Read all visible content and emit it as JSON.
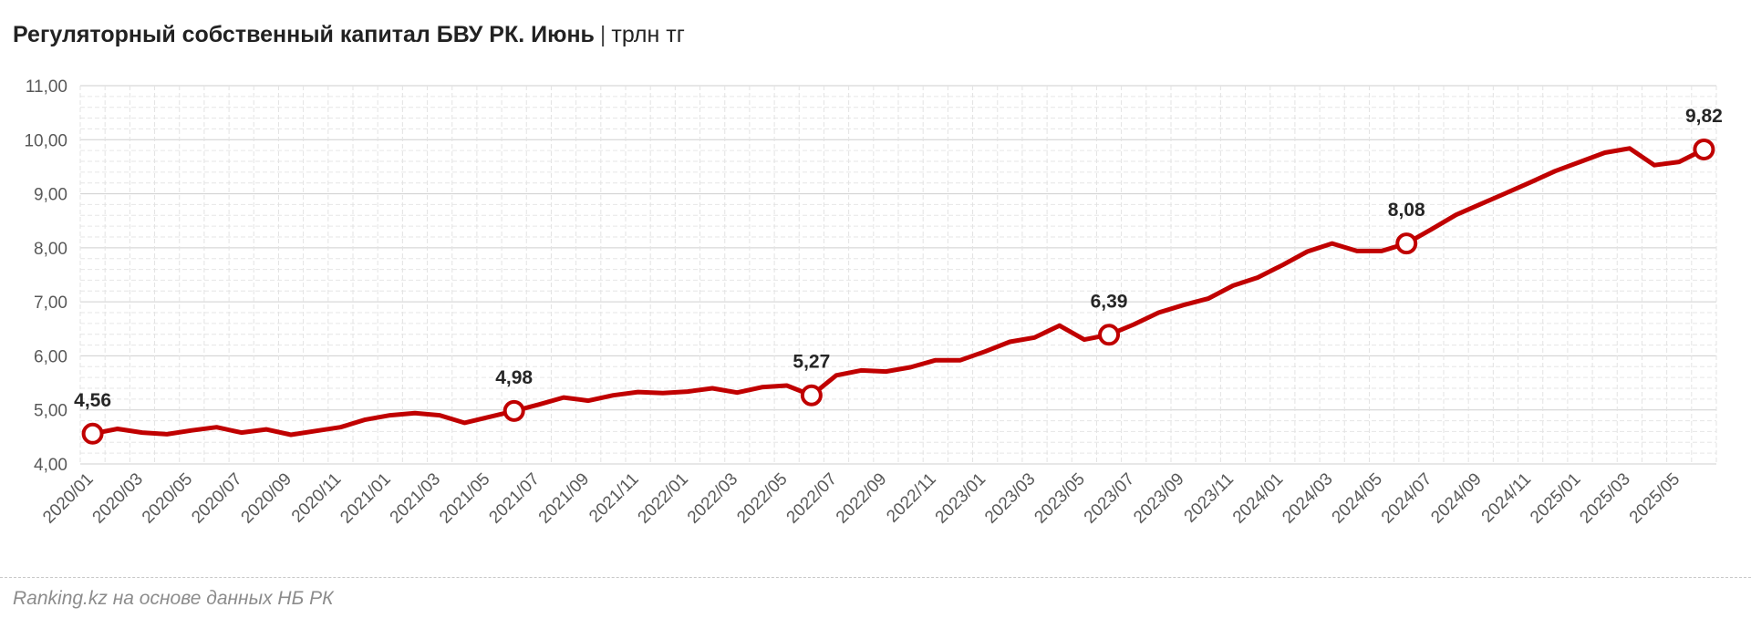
{
  "chart": {
    "title": "Регуляторный собственный капитал БВУ РК. Июнь",
    "separator": "|",
    "unit": "трлн тг"
  },
  "source": "Ranking.kz на основе данных НБ РК",
  "colors": {
    "line": "#c00000",
    "grid": "#d9d9d9",
    "axis_text": "#595959"
  },
  "chart_data": {
    "type": "line",
    "title": "Регуляторный собственный капитал БВУ РК. Июнь",
    "xlabel": "",
    "ylabel": "",
    "ylim": [
      4.0,
      11.0
    ],
    "yticks": [
      4.0,
      5.0,
      6.0,
      7.0,
      8.0,
      9.0,
      10.0,
      11.0
    ],
    "ytick_labels": [
      "4,00",
      "5,00",
      "6,00",
      "7,00",
      "8,00",
      "9,00",
      "10,00",
      "11,00"
    ],
    "x": [
      "2020/01",
      "2020/02",
      "2020/03",
      "2020/04",
      "2020/05",
      "2020/06",
      "2020/07",
      "2020/08",
      "2020/09",
      "2020/10",
      "2020/11",
      "2020/12",
      "2021/01",
      "2021/02",
      "2021/03",
      "2021/04",
      "2021/05",
      "2021/06",
      "2021/07",
      "2021/08",
      "2021/09",
      "2021/10",
      "2021/11",
      "2021/12",
      "2022/01",
      "2022/02",
      "2022/03",
      "2022/04",
      "2022/05",
      "2022/06",
      "2022/07",
      "2022/08",
      "2022/09",
      "2022/10",
      "2022/11",
      "2022/12",
      "2023/01",
      "2023/02",
      "2023/03",
      "2023/04",
      "2023/05",
      "2023/06",
      "2023/07",
      "2023/08",
      "2023/09",
      "2023/10",
      "2023/11",
      "2023/12",
      "2024/01",
      "2024/02",
      "2024/03",
      "2024/04",
      "2024/05",
      "2024/06",
      "2024/07",
      "2024/08",
      "2024/09",
      "2024/10",
      "2024/11",
      "2024/12",
      "2025/01",
      "2025/02",
      "2025/03",
      "2025/04",
      "2025/05",
      "2025/06"
    ],
    "x_tick_labels": [
      "2020/01",
      "2020/03",
      "2020/05",
      "2020/07",
      "2020/09",
      "2020/11",
      "2021/01",
      "2021/03",
      "2021/05",
      "2021/07",
      "2021/09",
      "2021/11",
      "2022/01",
      "2022/03",
      "2022/05",
      "2022/07",
      "2022/09",
      "2022/11",
      "2023/01",
      "2023/03",
      "2023/05",
      "2023/07",
      "2023/09",
      "2023/11",
      "2024/01",
      "2024/03",
      "2024/05",
      "2024/07",
      "2024/09",
      "2024/11",
      "2025/01",
      "2025/03",
      "2025/05"
    ],
    "series": [
      {
        "values": [
          4.56,
          4.65,
          4.58,
          4.55,
          4.62,
          4.68,
          4.58,
          4.64,
          4.54,
          4.61,
          4.68,
          4.82,
          4.9,
          4.94,
          4.9,
          4.76,
          4.87,
          4.98,
          5.1,
          5.23,
          5.17,
          5.27,
          5.33,
          5.31,
          5.34,
          5.4,
          5.32,
          5.42,
          5.45,
          5.27,
          5.64,
          5.73,
          5.71,
          5.79,
          5.92,
          5.92,
          6.08,
          6.26,
          6.34,
          6.56,
          6.3,
          6.39,
          6.58,
          6.8,
          6.94,
          7.06,
          7.3,
          7.45,
          7.68,
          7.93,
          8.08,
          7.94,
          7.94,
          8.08,
          8.34,
          8.61,
          8.81,
          9.01,
          9.21,
          9.42,
          9.59,
          9.76,
          9.84,
          9.53,
          9.59,
          9.82
        ]
      }
    ],
    "labeled_points": [
      {
        "index": 0,
        "label": "4,56"
      },
      {
        "index": 17,
        "label": "4,98"
      },
      {
        "index": 29,
        "label": "5,27"
      },
      {
        "index": 41,
        "label": "6,39"
      },
      {
        "index": 53,
        "label": "8,08"
      },
      {
        "index": 65,
        "label": "9,82"
      }
    ],
    "grid": true,
    "legend": "none"
  }
}
